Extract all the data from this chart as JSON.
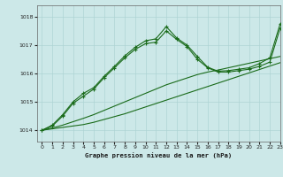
{
  "title": "Graphe pression niveau de la mer (hPa)",
  "bg_color": "#cce8e8",
  "grid_color": "#aed4d4",
  "line_color": "#1a6b1a",
  "xlim": [
    -0.5,
    23
  ],
  "ylim": [
    1013.6,
    1018.4
  ],
  "yticks": [
    1014,
    1015,
    1016,
    1017,
    1018
  ],
  "xticks": [
    0,
    1,
    2,
    3,
    4,
    5,
    6,
    7,
    8,
    9,
    10,
    11,
    12,
    13,
    14,
    15,
    16,
    17,
    18,
    19,
    20,
    21,
    22,
    23
  ],
  "series_smooth1": {
    "x": [
      0,
      1,
      2,
      3,
      4,
      5,
      6,
      7,
      8,
      9,
      10,
      11,
      12,
      13,
      14,
      15,
      16,
      17,
      18,
      19,
      20,
      21,
      22,
      23
    ],
    "y": [
      1014.0,
      1014.05,
      1014.1,
      1014.15,
      1014.2,
      1014.28,
      1014.38,
      1014.48,
      1014.58,
      1014.7,
      1014.82,
      1014.94,
      1015.06,
      1015.18,
      1015.3,
      1015.42,
      1015.54,
      1015.66,
      1015.78,
      1015.9,
      1016.02,
      1016.14,
      1016.26,
      1016.38
    ]
  },
  "series_smooth2": {
    "x": [
      0,
      1,
      2,
      3,
      4,
      5,
      6,
      7,
      8,
      9,
      10,
      11,
      12,
      13,
      14,
      15,
      16,
      17,
      18,
      19,
      20,
      21,
      22,
      23
    ],
    "y": [
      1014.0,
      1014.08,
      1014.18,
      1014.3,
      1014.42,
      1014.55,
      1014.7,
      1014.85,
      1015.0,
      1015.15,
      1015.3,
      1015.45,
      1015.6,
      1015.72,
      1015.84,
      1015.96,
      1016.05,
      1016.12,
      1016.2,
      1016.28,
      1016.36,
      1016.44,
      1016.52,
      1016.6
    ]
  },
  "series_marker1": {
    "x": [
      0,
      1,
      2,
      3,
      4,
      5,
      6,
      7,
      8,
      9,
      10,
      11,
      12,
      13,
      14,
      15,
      16,
      17,
      18,
      19,
      20,
      21,
      22,
      23
    ],
    "y": [
      1014.0,
      1014.15,
      1014.5,
      1014.95,
      1015.2,
      1015.45,
      1015.85,
      1016.2,
      1016.55,
      1016.85,
      1017.05,
      1017.1,
      1017.5,
      1017.2,
      1016.95,
      1016.5,
      1016.2,
      1016.05,
      1016.05,
      1016.1,
      1016.15,
      1016.25,
      1016.4,
      1017.6
    ]
  },
  "series_marker2": {
    "x": [
      0,
      1,
      2,
      3,
      4,
      5,
      6,
      7,
      8,
      9,
      10,
      11,
      12,
      13,
      14,
      15,
      16,
      17,
      18,
      19,
      20,
      21,
      22,
      23
    ],
    "y": [
      1014.0,
      1014.18,
      1014.55,
      1015.0,
      1015.3,
      1015.5,
      1015.9,
      1016.25,
      1016.62,
      1016.92,
      1017.15,
      1017.22,
      1017.65,
      1017.25,
      1017.0,
      1016.6,
      1016.22,
      1016.08,
      1016.1,
      1016.15,
      1016.2,
      1016.35,
      1016.55,
      1017.75
    ]
  }
}
